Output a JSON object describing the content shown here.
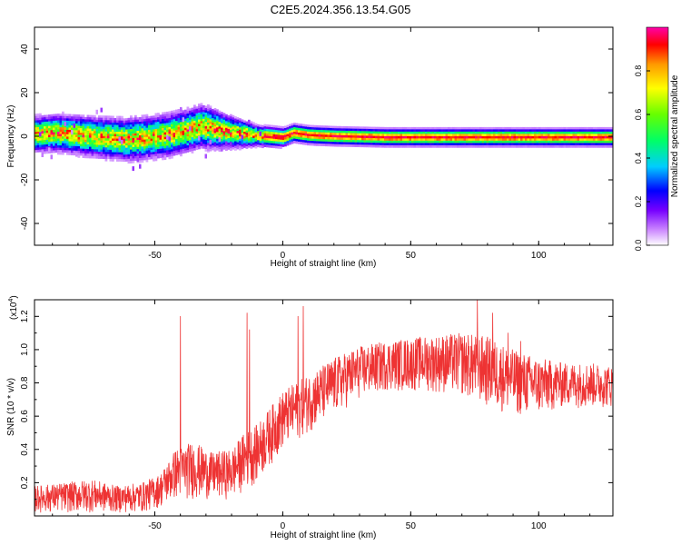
{
  "title": "C2E5.2024.356.13.54.G05",
  "colorbar": {
    "label": "Normalized spectral amplitude",
    "ticks": [
      "0.0",
      "0.2",
      "0.4",
      "0.6",
      "0.8"
    ],
    "range": [
      0,
      1
    ]
  },
  "chart_data": [
    {
      "type": "heatmap",
      "xlabel": "Height of straight line (km)",
      "ylabel": "Frequency (Hz)",
      "xlim": [
        -97,
        129
      ],
      "ylim": [
        -50,
        50
      ],
      "xticks": [
        "-50",
        "0",
        "50",
        "100"
      ],
      "yticks": [
        "-40",
        "-20",
        "0",
        "20",
        "40"
      ],
      "band_center": [
        {
          "x": -97,
          "y": 1.5
        },
        {
          "x": -88,
          "y": 2
        },
        {
          "x": -80,
          "y": 1
        },
        {
          "x": -72,
          "y": 0
        },
        {
          "x": -62,
          "y": -1
        },
        {
          "x": -55,
          "y": -0.5
        },
        {
          "x": -45,
          "y": 1
        },
        {
          "x": -38,
          "y": 3
        },
        {
          "x": -32,
          "y": 5
        },
        {
          "x": -28,
          "y": 4
        },
        {
          "x": -22,
          "y": 2.5
        },
        {
          "x": -15,
          "y": 1.5
        },
        {
          "x": -8,
          "y": 0.5
        },
        {
          "x": 0,
          "y": 0
        },
        {
          "x": 4,
          "y": 2
        },
        {
          "x": 10,
          "y": 1
        },
        {
          "x": 20,
          "y": 0.5
        },
        {
          "x": 40,
          "y": 0
        },
        {
          "x": 80,
          "y": 0
        },
        {
          "x": 129,
          "y": 0
        }
      ],
      "band_halfwidth": [
        {
          "x": -97,
          "y": 5
        },
        {
          "x": -60,
          "y": 6
        },
        {
          "x": -30,
          "y": 6
        },
        {
          "x": -10,
          "y": 3
        },
        {
          "x": 5,
          "y": 2.5
        },
        {
          "x": 40,
          "y": 2.5
        },
        {
          "x": 129,
          "y": 2.5
        }
      ]
    },
    {
      "type": "line",
      "xlabel": "Height of straight line (km)",
      "ylabel": "SNR (10 * v/v)",
      "multiplier": "(x10",
      "multiplier_exp": "4",
      "xlim": [
        -97,
        129
      ],
      "ylim": [
        0,
        1.3
      ],
      "xticks": [
        "-50",
        "0",
        "50",
        "100"
      ],
      "yticks": [
        "0.2",
        "0.4",
        "0.6",
        "0.8",
        "1.0",
        "1.2"
      ],
      "color": "#ee3333",
      "series": [
        {
          "envelope": [
            {
              "x": -97,
              "lo": 0.02,
              "hi": 0.18
            },
            {
              "x": -85,
              "lo": 0.02,
              "hi": 0.2
            },
            {
              "x": -75,
              "lo": 0.02,
              "hi": 0.22
            },
            {
              "x": -65,
              "lo": 0.02,
              "hi": 0.18
            },
            {
              "x": -55,
              "lo": 0.02,
              "hi": 0.2
            },
            {
              "x": -48,
              "lo": 0.05,
              "hi": 0.25
            },
            {
              "x": -42,
              "lo": 0.1,
              "hi": 0.4
            },
            {
              "x": -35,
              "lo": 0.1,
              "hi": 0.45
            },
            {
              "x": -28,
              "lo": 0.1,
              "hi": 0.38
            },
            {
              "x": -20,
              "lo": 0.1,
              "hi": 0.4
            },
            {
              "x": -15,
              "lo": 0.15,
              "hi": 0.5
            },
            {
              "x": -10,
              "lo": 0.2,
              "hi": 0.55
            },
            {
              "x": -5,
              "lo": 0.3,
              "hi": 0.65
            },
            {
              "x": 0,
              "lo": 0.4,
              "hi": 0.75
            },
            {
              "x": 5,
              "lo": 0.45,
              "hi": 0.8
            },
            {
              "x": 10,
              "lo": 0.5,
              "hi": 0.85
            },
            {
              "x": 20,
              "lo": 0.6,
              "hi": 0.95
            },
            {
              "x": 30,
              "lo": 0.7,
              "hi": 1.02
            },
            {
              "x": 40,
              "lo": 0.75,
              "hi": 1.05
            },
            {
              "x": 55,
              "lo": 0.75,
              "hi": 1.08
            },
            {
              "x": 70,
              "lo": 0.72,
              "hi": 1.1
            },
            {
              "x": 80,
              "lo": 0.65,
              "hi": 1.08
            },
            {
              "x": 90,
              "lo": 0.6,
              "hi": 1.0
            },
            {
              "x": 100,
              "lo": 0.6,
              "hi": 0.95
            },
            {
              "x": 110,
              "lo": 0.65,
              "hi": 0.92
            },
            {
              "x": 120,
              "lo": 0.65,
              "hi": 0.92
            },
            {
              "x": 129,
              "lo": 0.65,
              "hi": 0.9
            }
          ],
          "spikes": [
            {
              "x": -40,
              "y": 1.2
            },
            {
              "x": -14,
              "y": 1.22
            },
            {
              "x": -13,
              "y": 1.12
            },
            {
              "x": 6,
              "y": 1.2
            },
            {
              "x": 8,
              "y": 1.26
            },
            {
              "x": 76,
              "y": 1.3
            },
            {
              "x": 82,
              "y": 1.22
            },
            {
              "x": 88,
              "y": 1.1
            },
            {
              "x": 93,
              "y": 1.05
            }
          ]
        }
      ]
    }
  ]
}
